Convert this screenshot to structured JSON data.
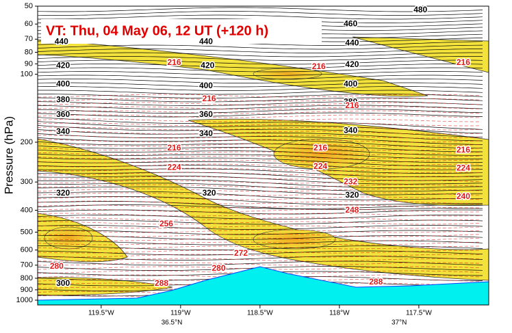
{
  "chart_data": {
    "type": "cross-section",
    "title": "VT:  Thu, 04 May 06, 12 UT (+120 h)",
    "ylabel": "Pressure (hPa)",
    "yscale": "log",
    "y_inverted": true,
    "ylim": [
      50,
      1050
    ],
    "yticks": [
      50,
      60,
      70,
      80,
      90,
      100,
      200,
      300,
      400,
      500,
      600,
      700,
      800,
      900,
      1000
    ],
    "xlim": [
      -119.9,
      -117.06
    ],
    "xticks": [
      {
        "value": -119.5,
        "label": "119.5°W"
      },
      {
        "value": -119,
        "label": "119°W"
      },
      {
        "value": -118.5,
        "label": "118.5°W"
      },
      {
        "value": -118,
        "label": "118°W"
      },
      {
        "value": -117.5,
        "label": "117.5°W"
      }
    ],
    "x2lim": [
      36.205,
      37.197
    ],
    "x2ticks": [
      {
        "value": 36.5,
        "label": "36.5°N"
      },
      {
        "value": 37,
        "label": "37°N"
      }
    ],
    "contours": [
      {
        "color": "#000000",
        "labels": [
          {
            "value": 480,
            "x": -117.49,
            "y": 52
          },
          {
            "value": 460,
            "x": -117.93,
            "y": 60
          },
          {
            "value": 440,
            "x": -119.75,
            "y": 72
          },
          {
            "value": 440,
            "x": -118.84,
            "y": 72
          },
          {
            "value": 440,
            "x": -117.92,
            "y": 73
          },
          {
            "value": 420,
            "x": -119.74,
            "y": 92
          },
          {
            "value": 420,
            "x": -118.83,
            "y": 92
          },
          {
            "value": 420,
            "x": -117.92,
            "y": 91
          },
          {
            "value": 400,
            "x": -119.74,
            "y": 111
          },
          {
            "value": 400,
            "x": -118.84,
            "y": 113
          },
          {
            "value": 400,
            "x": -117.93,
            "y": 111
          },
          {
            "value": 380,
            "x": -119.74,
            "y": 130
          },
          {
            "value": 380,
            "x": -117.93,
            "y": 133
          },
          {
            "value": 360,
            "x": -119.74,
            "y": 151
          },
          {
            "value": 360,
            "x": -118.84,
            "y": 151
          },
          {
            "value": 340,
            "x": -119.74,
            "y": 180
          },
          {
            "value": 340,
            "x": -118.84,
            "y": 184
          },
          {
            "value": 340,
            "x": -117.93,
            "y": 178
          },
          {
            "value": 320,
            "x": -119.74,
            "y": 337
          },
          {
            "value": 320,
            "x": -118.82,
            "y": 337
          },
          {
            "value": 320,
            "x": -117.92,
            "y": 344
          },
          {
            "value": 300,
            "x": -119.74,
            "y": 846
          }
        ]
      },
      {
        "color": "#e01818",
        "labels": [
          {
            "value": 216,
            "x": -119.04,
            "y": 89
          },
          {
            "value": 216,
            "x": -118.13,
            "y": 93
          },
          {
            "value": 216,
            "x": -117.22,
            "y": 89
          },
          {
            "value": 216,
            "x": -118.82,
            "y": 129
          },
          {
            "value": 216,
            "x": -117.92,
            "y": 138
          },
          {
            "value": 216,
            "x": -119.04,
            "y": 213
          },
          {
            "value": 216,
            "x": -118.12,
            "y": 213
          },
          {
            "value": 216,
            "x": -117.22,
            "y": 217
          },
          {
            "value": 224,
            "x": -119.04,
            "y": 259
          },
          {
            "value": 224,
            "x": -118.12,
            "y": 257
          },
          {
            "value": 224,
            "x": -117.22,
            "y": 261
          },
          {
            "value": 232,
            "x": -117.93,
            "y": 300
          },
          {
            "value": 240,
            "x": -117.22,
            "y": 349
          },
          {
            "value": 248,
            "x": -117.92,
            "y": 401
          },
          {
            "value": 256,
            "x": -119.09,
            "y": 461
          },
          {
            "value": 272,
            "x": -118.62,
            "y": 622
          },
          {
            "value": 280,
            "x": -119.78,
            "y": 710
          },
          {
            "value": 280,
            "x": -118.76,
            "y": 726
          },
          {
            "value": 288,
            "x": -119.12,
            "y": 846
          },
          {
            "value": 288,
            "x": -117.77,
            "y": 834
          }
        ]
      }
    ]
  }
}
